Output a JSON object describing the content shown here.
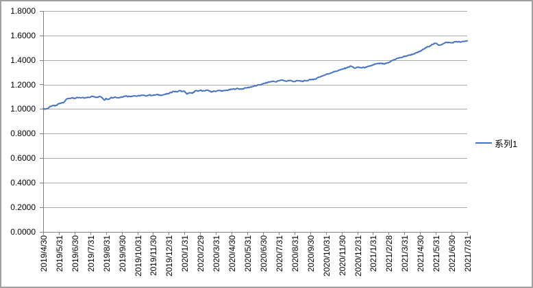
{
  "chart_data": {
    "type": "line",
    "title": "",
    "xlabel": "",
    "ylabel": "",
    "background_color": "#FFFFFF",
    "border_color": "#A0A0A0",
    "grid_color": "#ABABAB",
    "axis_color": "#808080",
    "text_color": "#000000",
    "grid": "on",
    "legend_position": "right",
    "legend": {
      "label": "系列1",
      "line_color": "#4472C4"
    },
    "y_axis": {
      "min": 0.0,
      "max": 1.8,
      "step": 0.2,
      "tick_labels": [
        "0.0000",
        "0.2000",
        "0.4000",
        "0.6000",
        "0.8000",
        "1.0000",
        "1.2000",
        "1.4000",
        "1.6000",
        "1.8000"
      ]
    },
    "x_axis": {
      "tick_labels": [
        "2019/4/30",
        "2019/5/31",
        "2019/6/30",
        "2019/7/31",
        "2019/8/31",
        "2019/9/30",
        "2019/10/31",
        "2019/11/30",
        "2019/12/31",
        "2020/1/31",
        "2020/2/29",
        "2020/3/31",
        "2020/4/30",
        "2020/5/31",
        "2020/6/30",
        "2020/7/31",
        "2020/8/31",
        "2020/9/30",
        "2020/10/31",
        "2020/11/30",
        "2020/12/31",
        "2021/1/31",
        "2021/2/28",
        "2021/3/31",
        "2021/4/30",
        "2021/5/31",
        "2021/6/30",
        "2021/7/31"
      ]
    },
    "series": [
      {
        "name": "系列1",
        "color": "#4472C4",
        "stroke_width": 2,
        "points_t_value": [
          [
            0,
            1.0
          ],
          [
            0.15,
            1.001
          ],
          [
            0.3,
            1.004
          ],
          [
            0.45,
            1.022
          ],
          [
            0.6,
            1.028
          ],
          [
            0.75,
            1.025
          ],
          [
            0.9,
            1.034
          ],
          [
            1.0,
            1.042
          ],
          [
            1.15,
            1.048
          ],
          [
            1.3,
            1.052
          ],
          [
            1.5,
            1.082
          ],
          [
            1.7,
            1.088
          ],
          [
            1.85,
            1.092
          ],
          [
            2.0,
            1.088
          ],
          [
            2.3,
            1.094
          ],
          [
            2.6,
            1.089
          ],
          [
            2.8,
            1.093
          ],
          [
            3.0,
            1.097
          ],
          [
            3.15,
            1.104
          ],
          [
            3.4,
            1.096
          ],
          [
            3.65,
            1.102
          ],
          [
            3.8,
            1.085
          ],
          [
            3.9,
            1.072
          ],
          [
            4.0,
            1.086
          ],
          [
            4.15,
            1.079
          ],
          [
            4.3,
            1.092
          ],
          [
            4.6,
            1.097
          ],
          [
            4.8,
            1.091
          ],
          [
            5.0,
            1.099
          ],
          [
            5.25,
            1.107
          ],
          [
            5.5,
            1.102
          ],
          [
            5.75,
            1.108
          ],
          [
            6.0,
            1.105
          ],
          [
            6.25,
            1.112
          ],
          [
            6.5,
            1.108
          ],
          [
            6.75,
            1.114
          ],
          [
            7.0,
            1.111
          ],
          [
            7.25,
            1.117
          ],
          [
            7.5,
            1.113
          ],
          [
            7.75,
            1.119
          ],
          [
            8.0,
            1.126
          ],
          [
            8.3,
            1.145
          ],
          [
            8.5,
            1.14
          ],
          [
            8.7,
            1.15
          ],
          [
            8.9,
            1.143
          ],
          [
            9.0,
            1.145
          ],
          [
            9.15,
            1.122
          ],
          [
            9.3,
            1.133
          ],
          [
            9.5,
            1.128
          ],
          [
            9.7,
            1.149
          ],
          [
            9.85,
            1.145
          ],
          [
            10.0,
            1.152
          ],
          [
            10.3,
            1.147
          ],
          [
            10.5,
            1.154
          ],
          [
            10.7,
            1.138
          ],
          [
            10.85,
            1.147
          ],
          [
            11.0,
            1.145
          ],
          [
            11.2,
            1.151
          ],
          [
            11.45,
            1.147
          ],
          [
            11.7,
            1.153
          ],
          [
            12.0,
            1.16
          ],
          [
            12.3,
            1.166
          ],
          [
            12.6,
            1.163
          ],
          [
            12.8,
            1.168
          ],
          [
            13.0,
            1.174
          ],
          [
            13.3,
            1.182
          ],
          [
            13.6,
            1.191
          ],
          [
            13.8,
            1.198
          ],
          [
            14.0,
            1.205
          ],
          [
            14.3,
            1.217
          ],
          [
            14.6,
            1.226
          ],
          [
            14.8,
            1.222
          ],
          [
            15.0,
            1.23
          ],
          [
            15.2,
            1.236
          ],
          [
            15.45,
            1.227
          ],
          [
            15.7,
            1.233
          ],
          [
            16.0,
            1.224
          ],
          [
            16.2,
            1.231
          ],
          [
            16.5,
            1.226
          ],
          [
            16.8,
            1.231
          ],
          [
            17.0,
            1.242
          ],
          [
            17.2,
            1.238
          ],
          [
            17.5,
            1.257
          ],
          [
            17.75,
            1.269
          ],
          [
            18.0,
            1.281
          ],
          [
            18.3,
            1.294
          ],
          [
            18.6,
            1.307
          ],
          [
            18.8,
            1.314
          ],
          [
            19.0,
            1.322
          ],
          [
            19.3,
            1.336
          ],
          [
            19.6,
            1.35
          ],
          [
            19.85,
            1.333
          ],
          [
            20.0,
            1.34
          ],
          [
            20.3,
            1.337
          ],
          [
            20.6,
            1.342
          ],
          [
            20.8,
            1.349
          ],
          [
            21.0,
            1.36
          ],
          [
            21.2,
            1.368
          ],
          [
            21.5,
            1.372
          ],
          [
            21.7,
            1.367
          ],
          [
            22.0,
            1.377
          ],
          [
            22.2,
            1.394
          ],
          [
            22.5,
            1.411
          ],
          [
            22.75,
            1.419
          ],
          [
            23.0,
            1.428
          ],
          [
            23.3,
            1.439
          ],
          [
            23.6,
            1.45
          ],
          [
            23.8,
            1.459
          ],
          [
            24.0,
            1.47
          ],
          [
            24.2,
            1.487
          ],
          [
            24.5,
            1.508
          ],
          [
            24.8,
            1.528
          ],
          [
            25.0,
            1.536
          ],
          [
            25.2,
            1.521
          ],
          [
            25.45,
            1.531
          ],
          [
            25.7,
            1.544
          ],
          [
            26.0,
            1.54
          ],
          [
            26.3,
            1.55
          ],
          [
            26.6,
            1.546
          ],
          [
            26.8,
            1.551
          ],
          [
            27.0,
            1.557
          ]
        ]
      }
    ]
  }
}
